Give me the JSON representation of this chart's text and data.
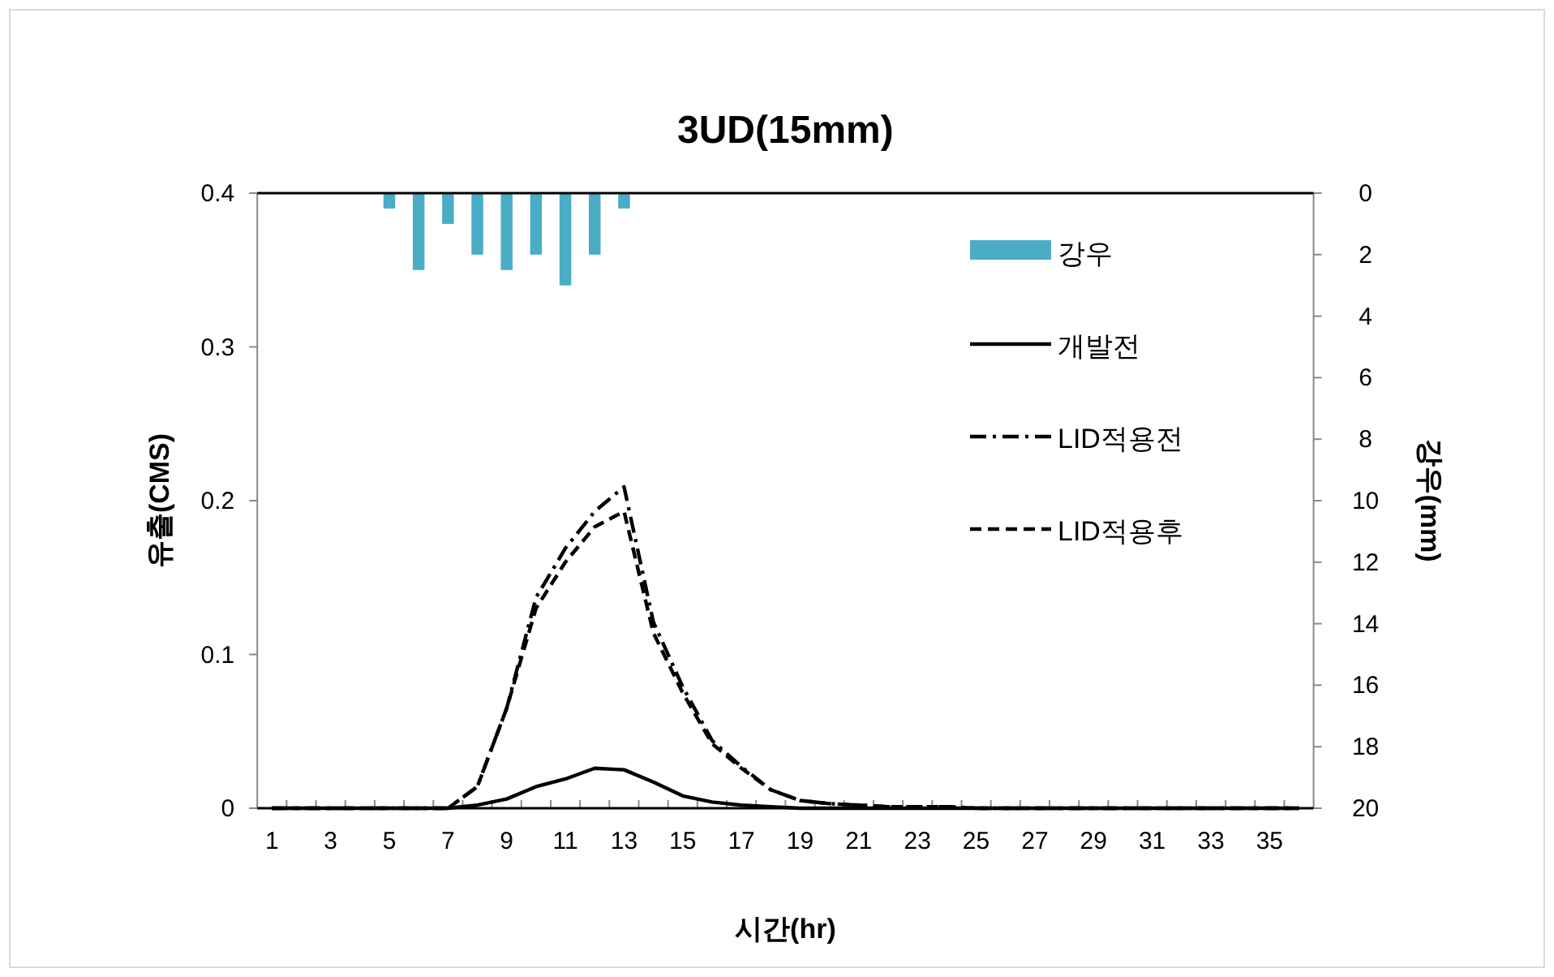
{
  "chart_data": {
    "type": "line",
    "title": "3UD(15mm)",
    "xlabel": "시간(hr)",
    "ylabel": "유출(CMS)",
    "y2label": "강우(mm)",
    "x": [
      1,
      2,
      3,
      4,
      5,
      6,
      7,
      8,
      9,
      10,
      11,
      12,
      13,
      14,
      15,
      16,
      17,
      18,
      19,
      20,
      21,
      22,
      23,
      24,
      25,
      26,
      27,
      28,
      29,
      30,
      31,
      32,
      33,
      34,
      35,
      36
    ],
    "xlim": [
      0.5,
      36.5
    ],
    "xticks": [
      1,
      3,
      5,
      7,
      9,
      11,
      13,
      15,
      17,
      19,
      21,
      23,
      25,
      27,
      29,
      31,
      33,
      35,
      {
        "value": 1.5,
        "label": null
      },
      {
        "value": 2.5,
        "label": null
      },
      {
        "value": 3.5,
        "label": null
      },
      {
        "value": 4.5,
        "label": null
      },
      {
        "value": 5.5,
        "label": null
      },
      {
        "value": 6.5,
        "label": null
      },
      {
        "value": 7.5,
        "label": null
      },
      {
        "value": 8.5,
        "label": null
      },
      {
        "value": 9.5,
        "label": null
      },
      {
        "value": 10.5,
        "label": null
      },
      {
        "value": 11.5,
        "label": null
      },
      {
        "value": 12.5,
        "label": null
      },
      {
        "value": 13.5,
        "label": null
      },
      {
        "value": 14.5,
        "label": null
      },
      {
        "value": 15.5,
        "label": null
      },
      {
        "value": 16.5,
        "label": null
      },
      {
        "value": 17.5,
        "label": null
      },
      {
        "value": 18.5,
        "label": null
      },
      {
        "value": 19.5,
        "label": null
      },
      {
        "value": 20.5,
        "label": null
      },
      {
        "value": 21.5,
        "label": null
      },
      {
        "value": 22.5,
        "label": null
      },
      {
        "value": 23.5,
        "label": null
      },
      {
        "value": 24.5,
        "label": null
      },
      {
        "value": 25.5,
        "label": null
      },
      {
        "value": 26.5,
        "label": null
      },
      {
        "value": 27.5,
        "label": null
      },
      {
        "value": 28.5,
        "label": null
      },
      {
        "value": 29.5,
        "label": null
      },
      {
        "value": 30.5,
        "label": null
      },
      {
        "value": 31.5,
        "label": null
      },
      {
        "value": 32.5,
        "label": null
      },
      {
        "value": 33.5,
        "label": null
      },
      {
        "value": 34.5,
        "label": null
      },
      {
        "value": 35.5,
        "label": null
      }
    ],
    "series": [
      {
        "name": "강우",
        "type": "bar",
        "axis": "y2",
        "color": "#4bacc6",
        "values": [
          null,
          null,
          null,
          null,
          0.5,
          2.5,
          1.0,
          2.0,
          2.5,
          2.0,
          3.0,
          2.0,
          0.5,
          null,
          null,
          null,
          null,
          null,
          null,
          null,
          null,
          null,
          null,
          null,
          null,
          null,
          null,
          null,
          null,
          null,
          null,
          null,
          null,
          null,
          null,
          null
        ]
      },
      {
        "name": "개발전",
        "color": "#000000",
        "line_style": "solid",
        "values": [
          0,
          0,
          0,
          0,
          0,
          0,
          0,
          0.002,
          0.006,
          0.014,
          0.019,
          0.026,
          0.025,
          0.017,
          0.008,
          0.004,
          0.002,
          0.001,
          0,
          0,
          0,
          0,
          0,
          0,
          0,
          0,
          0,
          0,
          0,
          0,
          0,
          0,
          0,
          0,
          0,
          0
        ]
      },
      {
        "name": "LID적용전",
        "color": "#000000",
        "line_style": "dashdot",
        "values": [
          0,
          0,
          0,
          0,
          0,
          0,
          0,
          0.014,
          0.065,
          0.137,
          0.169,
          0.193,
          0.209,
          0.121,
          0.079,
          0.044,
          0.027,
          0.012,
          0.005,
          0.003,
          0.002,
          0.001,
          0.001,
          0.001,
          0,
          0,
          0,
          0,
          0,
          0,
          0,
          0,
          0,
          0,
          0,
          0
        ]
      },
      {
        "name": "LID적용후",
        "color": "#000000",
        "line_style": "dashed",
        "values": [
          0,
          0,
          0,
          0,
          0,
          0,
          0,
          0.014,
          0.065,
          0.13,
          0.16,
          0.183,
          0.193,
          0.114,
          0.075,
          0.042,
          0.026,
          0.012,
          0.005,
          0.003,
          0.002,
          0.001,
          0.001,
          0.001,
          0,
          0,
          0,
          0,
          0,
          0,
          0,
          0,
          0,
          0,
          0,
          0
        ]
      }
    ],
    "ylim": [
      0,
      0.4
    ],
    "yticks": [
      0,
      0.1,
      0.2,
      0.3,
      0.4
    ],
    "y2lim": [
      20,
      0
    ],
    "y2ticks": [
      0,
      2,
      4,
      6,
      8,
      10,
      12,
      14,
      16,
      18,
      20
    ],
    "grid": false,
    "legend": "top right"
  }
}
